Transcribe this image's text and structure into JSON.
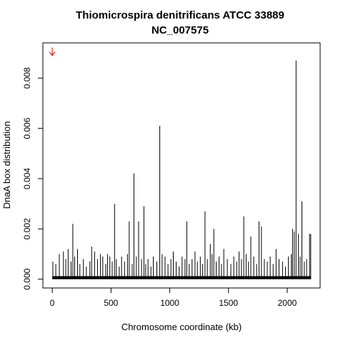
{
  "chart_data": {
    "type": "bar",
    "title_line1": "Thiomicrospira denitrificans ATCC 33889",
    "title_line2": "NC_007575",
    "xlabel": "Chromosome coordinate (kb)",
    "ylabel": "DnaA box distribution",
    "xlim": [
      -80,
      2280
    ],
    "ylim": [
      -0.00035,
      0.0094
    ],
    "xticks": [
      0,
      500,
      1000,
      1500,
      2000
    ],
    "xtick_labels": [
      "0",
      "500",
      "1000",
      "1500",
      "2000"
    ],
    "yticks": [
      0.0,
      0.002,
      0.004,
      0.006,
      0.008
    ],
    "ytick_labels": [
      "0.000",
      "0.002",
      "0.004",
      "0.006",
      "0.008"
    ],
    "grid": false,
    "origin_marker": {
      "x": 0,
      "y": 0.0089,
      "color": "#cc0000",
      "symbol": "down-arrow"
    },
    "bar_color": "#000000",
    "x": [
      5,
      30,
      60,
      95,
      115,
      135,
      160,
      175,
      190,
      215,
      235,
      265,
      290,
      320,
      335,
      360,
      385,
      410,
      430,
      455,
      470,
      490,
      510,
      530,
      545,
      570,
      590,
      615,
      640,
      655,
      680,
      695,
      715,
      735,
      760,
      780,
      795,
      815,
      840,
      860,
      890,
      915,
      935,
      960,
      985,
      1010,
      1030,
      1055,
      1080,
      1105,
      1130,
      1145,
      1165,
      1190,
      1215,
      1235,
      1260,
      1280,
      1300,
      1320,
      1345,
      1360,
      1375,
      1395,
      1420,
      1440,
      1460,
      1490,
      1520,
      1545,
      1570,
      1590,
      1610,
      1630,
      1650,
      1670,
      1690,
      1715,
      1740,
      1760,
      1780,
      1805,
      1830,
      1855,
      1880,
      1905,
      1930,
      1960,
      1985,
      2010,
      2035,
      2045,
      2060,
      2075,
      2095,
      2110,
      2125,
      2145,
      2165,
      2190,
      2200
    ],
    "values": [
      0.0007,
      0.0006,
      0.001,
      0.0011,
      0.0008,
      0.0012,
      0.0007,
      0.0022,
      0.0009,
      0.0012,
      0.0006,
      0.0008,
      0.0005,
      0.0007,
      0.0013,
      0.0011,
      0.0008,
      0.001,
      0.0009,
      0.0006,
      0.001,
      0.0009,
      0.0007,
      0.003,
      0.0008,
      0.0005,
      0.0009,
      0.0007,
      0.001,
      0.0023,
      0.0006,
      0.0042,
      0.0009,
      0.0023,
      0.0008,
      0.0029,
      0.0006,
      0.0008,
      0.0005,
      0.0009,
      0.0007,
      0.0061,
      0.001,
      0.0009,
      0.0006,
      0.0008,
      0.0011,
      0.0007,
      0.0005,
      0.0009,
      0.0008,
      0.0023,
      0.0006,
      0.0008,
      0.0011,
      0.0007,
      0.0009,
      0.0006,
      0.0027,
      0.0008,
      0.0014,
      0.001,
      0.002,
      0.0007,
      0.0009,
      0.0006,
      0.0012,
      0.0008,
      0.0006,
      0.0009,
      0.0007,
      0.0011,
      0.0008,
      0.0025,
      0.001,
      0.0007,
      0.0017,
      0.0009,
      0.0006,
      0.0023,
      0.0021,
      0.0008,
      0.0007,
      0.0009,
      0.0006,
      0.0012,
      0.0008,
      0.0007,
      0.0005,
      0.0009,
      0.001,
      0.002,
      0.0019,
      0.0087,
      0.0018,
      0.0009,
      0.0031,
      0.0007,
      0.0008,
      0.0018,
      0.0018
    ]
  }
}
